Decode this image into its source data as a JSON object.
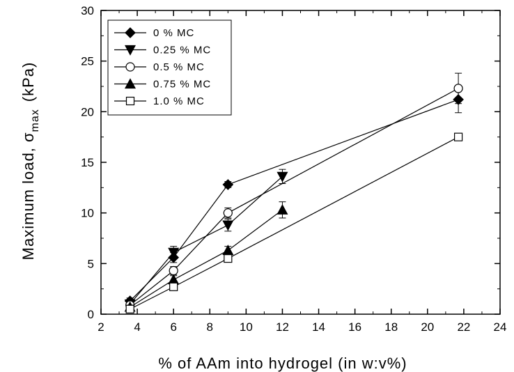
{
  "chart_data": {
    "type": "line",
    "xlabel": "% of AAm into hydrogel (in w:v%)",
    "ylabel": "Maximum load, σ",
    "ylabel_sub": "max",
    "ylabel_unit": "(kPa)",
    "xlim": [
      2,
      24
    ],
    "ylim": [
      0,
      30
    ],
    "xticks": [
      "2",
      "4",
      "6",
      "8",
      "10",
      "12",
      "14",
      "16",
      "18",
      "20",
      "22",
      "24"
    ],
    "yticks": [
      "0",
      "5",
      "10",
      "15",
      "20",
      "25",
      "30"
    ],
    "legend_position": "top-left",
    "series": [
      {
        "name": "0 % MC",
        "marker": "diamond-filled",
        "x": [
          3.6,
          6,
          9,
          21.7
        ],
        "y": [
          1.3,
          5.6,
          12.8,
          21.2
        ],
        "err": [
          0.3,
          0.5,
          0.3,
          1.3
        ]
      },
      {
        "name": "0.25 % MC",
        "marker": "triangle-down-filled",
        "x": [
          3.6,
          6,
          9,
          12
        ],
        "y": [
          1.0,
          6.1,
          8.8,
          13.6
        ],
        "err": [
          0.3,
          0.6,
          0.6,
          0.7
        ]
      },
      {
        "name": "0.5 % MC",
        "marker": "circle-open",
        "x": [
          3.6,
          6,
          9,
          21.7
        ],
        "y": [
          0.9,
          4.3,
          10.0,
          22.3
        ],
        "err": [
          0.3,
          0.4,
          0.5,
          1.5
        ]
      },
      {
        "name": "0.75 % MC",
        "marker": "triangle-up-filled",
        "x": [
          3.6,
          6,
          9,
          12
        ],
        "y": [
          0.7,
          3.4,
          6.3,
          10.3
        ],
        "err": [
          0.2,
          0.4,
          0.4,
          0.8
        ]
      },
      {
        "name": "1.0 % MC",
        "marker": "square-open",
        "x": [
          3.6,
          6,
          9,
          21.7
        ],
        "y": [
          0.5,
          2.7,
          5.5,
          17.5
        ],
        "err": [
          0.2,
          0.3,
          0.3,
          0.3
        ]
      }
    ]
  }
}
